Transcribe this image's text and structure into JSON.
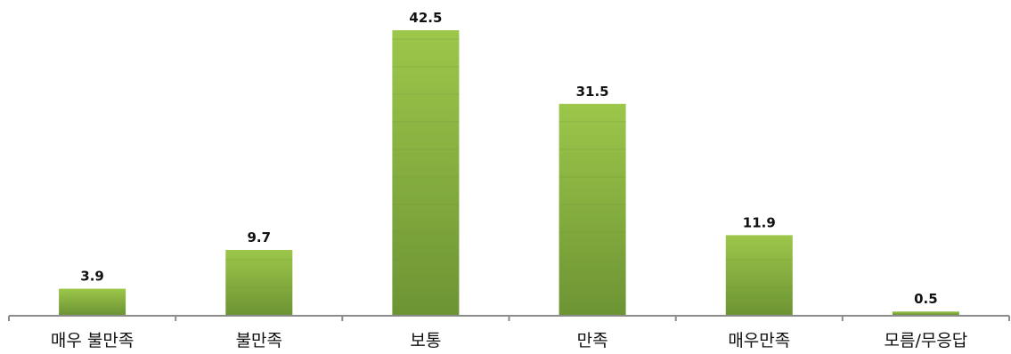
{
  "chart_data": {
    "type": "bar",
    "title": "",
    "xlabel": "",
    "ylabel": "",
    "categories": [
      "매우 불만족",
      "불만족",
      "보통",
      "만족",
      "매우만족",
      "모름/무응답"
    ],
    "values": [
      3.9,
      9.7,
      42.5,
      31.5,
      11.9,
      0.5
    ],
    "value_labels": [
      "3.9",
      "9.7",
      "42.5",
      "31.5",
      "11.9",
      "0.5"
    ],
    "ylim": [
      0,
      42.5
    ],
    "grid": false,
    "legend": "none",
    "colors": {
      "bar_top": "#9cc74a",
      "bar_bottom": "#6d9434",
      "axis": "#8c8c8c"
    }
  }
}
